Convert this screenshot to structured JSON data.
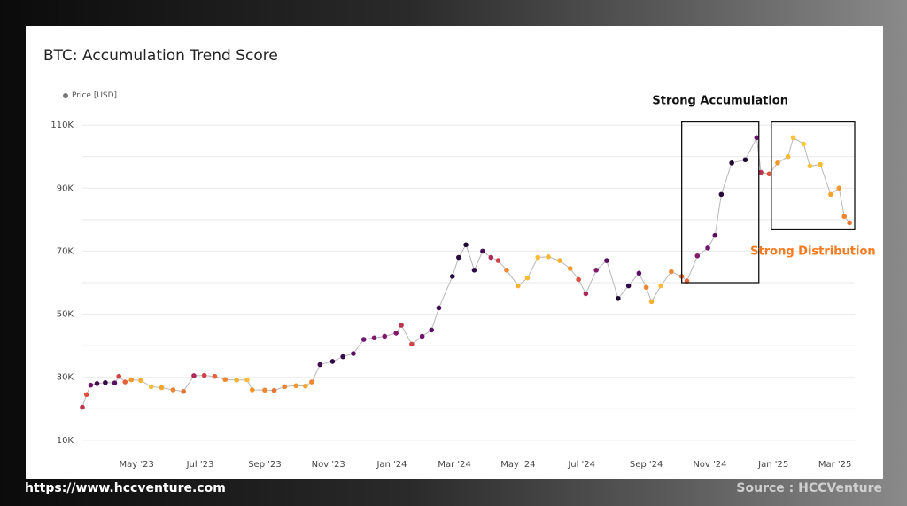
{
  "footer": {
    "url": "https://www.hccventure.com",
    "source": "Source : HCCVenture"
  },
  "chart_data": {
    "type": "scatter",
    "title": "BTC: Accumulation Trend Score",
    "legend": {
      "label": "Price [USD]",
      "placement": "top-left"
    },
    "xlabel": "",
    "ylabel": "",
    "x_ticks": [
      "May '23",
      "Jul '23",
      "Sep '23",
      "Nov '23",
      "Jan '24",
      "Mar '24",
      "May '24",
      "Jul '24",
      "Sep '24",
      "Nov '24",
      "Jan '25",
      "Mar '25"
    ],
    "y_ticks": [
      "10K",
      "30K",
      "50K",
      "70K",
      "90K",
      "110K"
    ],
    "y_tick_values": [
      10000,
      30000,
      50000,
      70000,
      90000,
      110000
    ],
    "xlim": [
      "2023-03-10",
      "2025-03-20"
    ],
    "ylim": [
      8000,
      112000
    ],
    "grid": true,
    "color_scale": "inferno score: 0 = strong distribution (yellow) ... 1 = strong accumulation (near-black)",
    "series": [
      {
        "points": [
          [
            "2023-03-10",
            20500,
            0.55
          ],
          [
            "2023-03-14",
            24500,
            0.45
          ],
          [
            "2023-03-18",
            27500,
            0.75
          ],
          [
            "2023-03-24",
            28000,
            0.85
          ],
          [
            "2023-04-01",
            28300,
            0.88
          ],
          [
            "2023-04-10",
            28200,
            0.8
          ],
          [
            "2023-04-14",
            30300,
            0.5
          ],
          [
            "2023-04-20",
            28500,
            0.4
          ],
          [
            "2023-04-26",
            29200,
            0.25
          ],
          [
            "2023-05-05",
            29000,
            0.15
          ],
          [
            "2023-05-15",
            27000,
            0.1
          ],
          [
            "2023-05-25",
            26700,
            0.2
          ],
          [
            "2023-06-05",
            26000,
            0.3
          ],
          [
            "2023-06-15",
            25500,
            0.35
          ],
          [
            "2023-06-25",
            30500,
            0.6
          ],
          [
            "2023-07-05",
            30600,
            0.5
          ],
          [
            "2023-07-15",
            30300,
            0.4
          ],
          [
            "2023-07-25",
            29300,
            0.3
          ],
          [
            "2023-08-05",
            29100,
            0.15
          ],
          [
            "2023-08-15",
            29200,
            0.1
          ],
          [
            "2023-08-20",
            26000,
            0.25
          ],
          [
            "2023-09-01",
            25900,
            0.3
          ],
          [
            "2023-09-10",
            25800,
            0.35
          ],
          [
            "2023-09-20",
            27000,
            0.3
          ],
          [
            "2023-10-01",
            27300,
            0.25
          ],
          [
            "2023-10-10",
            27200,
            0.2
          ],
          [
            "2023-10-16",
            28500,
            0.3
          ],
          [
            "2023-10-24",
            34000,
            0.85
          ],
          [
            "2023-11-05",
            35000,
            0.9
          ],
          [
            "2023-11-15",
            36500,
            0.88
          ],
          [
            "2023-11-25",
            37500,
            0.8
          ],
          [
            "2023-12-05",
            42000,
            0.75
          ],
          [
            "2023-12-15",
            42500,
            0.72
          ],
          [
            "2023-12-25",
            43000,
            0.7
          ],
          [
            "2024-01-05",
            44000,
            0.7
          ],
          [
            "2024-01-10",
            46500,
            0.55
          ],
          [
            "2024-01-20",
            40500,
            0.5
          ],
          [
            "2024-01-30",
            43000,
            0.75
          ],
          [
            "2024-02-08",
            45000,
            0.8
          ],
          [
            "2024-02-15",
            52000,
            0.85
          ],
          [
            "2024-02-28",
            62000,
            0.92
          ],
          [
            "2024-03-05",
            68000,
            0.92
          ],
          [
            "2024-03-12",
            72000,
            0.95
          ],
          [
            "2024-03-20",
            64000,
            0.9
          ],
          [
            "2024-03-28",
            70000,
            0.85
          ],
          [
            "2024-04-05",
            68000,
            0.6
          ],
          [
            "2024-04-12",
            67000,
            0.5
          ],
          [
            "2024-04-20",
            64000,
            0.3
          ],
          [
            "2024-05-01",
            59000,
            0.15
          ],
          [
            "2024-05-10",
            61500,
            0.1
          ],
          [
            "2024-05-20",
            68000,
            0.1
          ],
          [
            "2024-05-30",
            68200,
            0.12
          ],
          [
            "2024-06-10",
            67000,
            0.15
          ],
          [
            "2024-06-20",
            64500,
            0.25
          ],
          [
            "2024-06-28",
            61000,
            0.45
          ],
          [
            "2024-07-05",
            56500,
            0.6
          ],
          [
            "2024-07-15",
            64000,
            0.7
          ],
          [
            "2024-07-25",
            67000,
            0.8
          ],
          [
            "2024-08-05",
            55000,
            0.95
          ],
          [
            "2024-08-15",
            59000,
            0.9
          ],
          [
            "2024-08-25",
            63000,
            0.8
          ],
          [
            "2024-09-01",
            58500,
            0.3
          ],
          [
            "2024-09-06",
            54000,
            0.15
          ],
          [
            "2024-09-15",
            59000,
            0.1
          ],
          [
            "2024-09-25",
            63500,
            0.3
          ],
          [
            "2024-10-05",
            62000,
            0.35
          ],
          [
            "2024-10-10",
            60500,
            0.4
          ],
          [
            "2024-10-20",
            68500,
            0.7
          ],
          [
            "2024-10-30",
            71000,
            0.75
          ],
          [
            "2024-11-06",
            75000,
            0.8
          ],
          [
            "2024-11-12",
            88000,
            0.92
          ],
          [
            "2024-11-22",
            98000,
            0.95
          ],
          [
            "2024-12-05",
            99000,
            0.95
          ],
          [
            "2024-12-16",
            106000,
            0.75
          ],
          [
            "2024-12-20",
            95000,
            0.55
          ],
          [
            "2024-12-28",
            94500,
            0.45
          ],
          [
            "2025-01-05",
            98000,
            0.25
          ],
          [
            "2025-01-15",
            100000,
            0.12
          ],
          [
            "2025-01-20",
            106000,
            0.08
          ],
          [
            "2025-01-30",
            104000,
            0.05
          ],
          [
            "2025-02-05",
            97000,
            0.08
          ],
          [
            "2025-02-15",
            97500,
            0.1
          ],
          [
            "2025-02-25",
            88000,
            0.2
          ],
          [
            "2025-03-05",
            90000,
            0.25
          ],
          [
            "2025-03-10",
            81000,
            0.3
          ],
          [
            "2025-03-15",
            79000,
            0.35
          ]
        ]
      }
    ],
    "annotations": [
      {
        "text": "Strong Accumulation",
        "box_x": [
          "2024-10-05",
          "2024-12-18"
        ],
        "box_y": [
          60000,
          111000
        ]
      },
      {
        "text": "Strong Distribution",
        "box_x": [
          "2024-12-30",
          "2025-03-20"
        ],
        "box_y": [
          77000,
          111000
        ]
      }
    ]
  }
}
